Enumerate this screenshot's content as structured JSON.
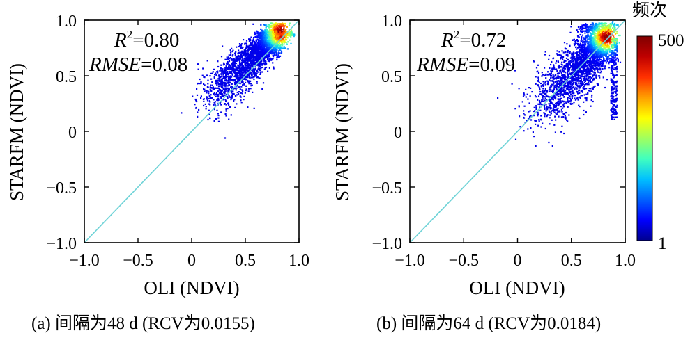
{
  "chart_data": [
    {
      "type": "scatter",
      "subtype": "density",
      "panel": "(a)",
      "caption": "(a) 间隔为48 d (RCV为0.0155)",
      "xlabel": "OLI (NDVI)",
      "ylabel": "STARFM (NDVI)",
      "xlim": [
        -1.0,
        1.0
      ],
      "ylim": [
        -1.0,
        1.0
      ],
      "xticks": [
        -1.0,
        -0.5,
        0,
        0.5,
        1.0
      ],
      "xtick_labels": [
        "−1.0",
        "−0.5",
        "0",
        "0.5",
        "1.0"
      ],
      "yticks": [
        -1.0,
        -0.5,
        0,
        0.5,
        1.0
      ],
      "ytick_labels": [
        "−1.0",
        "−0.5",
        "0",
        "0.5",
        "1.0"
      ],
      "grid": false,
      "reference_line": {
        "type": "1:1",
        "from": [
          -1.0,
          -1.0
        ],
        "to": [
          1.0,
          1.0
        ],
        "color": "#6fd3d7"
      },
      "stats": {
        "r2_symbol": "R",
        "r2_sup": "2",
        "r2_value": "=0.80",
        "rmse_symbol": "RMSE",
        "rmse_value": "=0.08"
      },
      "density_cloud": {
        "core": [
          0.82,
          0.9
        ],
        "lower_tail": [
          0.1,
          0.25
        ],
        "spread": 0.08,
        "high_x_band": [
          0.8,
          0.92
        ]
      }
    },
    {
      "type": "scatter",
      "subtype": "density",
      "panel": "(b)",
      "caption": "(b) 间隔为64 d (RCV为0.0184)",
      "xlabel": "OLI (NDVI)",
      "ylabel": "STARFM (NDVI)",
      "xlim": [
        -1.0,
        1.0
      ],
      "ylim": [
        -1.0,
        1.0
      ],
      "xticks": [
        -1.0,
        -0.5,
        0,
        0.5,
        1.0
      ],
      "xtick_labels": [
        "−1.0",
        "−0.5",
        "0",
        "0.5",
        "1.0"
      ],
      "yticks": [
        -1.0,
        -0.5,
        0,
        0.5,
        1.0
      ],
      "ytick_labels": [
        "−1.0",
        "−0.5",
        "0",
        "0.5",
        "1.0"
      ],
      "grid": false,
      "reference_line": {
        "type": "1:1",
        "from": [
          -1.0,
          -1.0
        ],
        "to": [
          1.0,
          1.0
        ],
        "color": "#6fd3d7"
      },
      "stats": {
        "r2_symbol": "R",
        "r2_sup": "2",
        "r2_value": "=0.72",
        "rmse_symbol": "RMSE",
        "rmse_value": "=0.09"
      },
      "density_cloud": {
        "core": [
          0.82,
          0.86
        ],
        "lower_tail": [
          0.15,
          0.15
        ],
        "spread": 0.11,
        "high_x_band": [
          0.8,
          0.92
        ]
      }
    }
  ],
  "colorbar": {
    "title": "频次",
    "min_label": "1",
    "max_label": "500",
    "colors": [
      "#00008f",
      "#0000ff",
      "#0060ff",
      "#00c0ff",
      "#40ffbf",
      "#a0ff5f",
      "#ffff00",
      "#ff9f00",
      "#ff3000",
      "#bf0000",
      "#800000"
    ]
  }
}
